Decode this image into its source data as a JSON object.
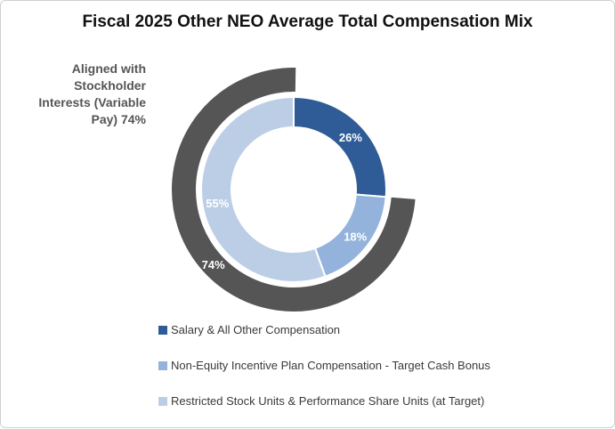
{
  "chart_data": {
    "type": "pie",
    "title": "Fiscal 2025 Other NEO Average Total Compensation Mix",
    "callout": [
      "Aligned with",
      "Stockholder",
      "Interests (Variable",
      "Pay) 74%"
    ],
    "inner_ring": {
      "categories": [
        "Salary & All Other Compensation",
        "Non-Equity Incentive Plan Compensation - Target Cash Bonus",
        "Restricted Stock Units & Performance Share Units (at Target)"
      ],
      "values": [
        26,
        18,
        55
      ],
      "labels": [
        "26%",
        "18%",
        "55%"
      ],
      "colors": [
        "#2f5c96",
        "#93b3dc",
        "#bccee6"
      ]
    },
    "outer_ring": {
      "categories": [
        "Variable Pay"
      ],
      "values": [
        74
      ],
      "labels": [
        "74%"
      ],
      "colors": [
        "#555555"
      ]
    },
    "legend_placement": "bottom"
  }
}
